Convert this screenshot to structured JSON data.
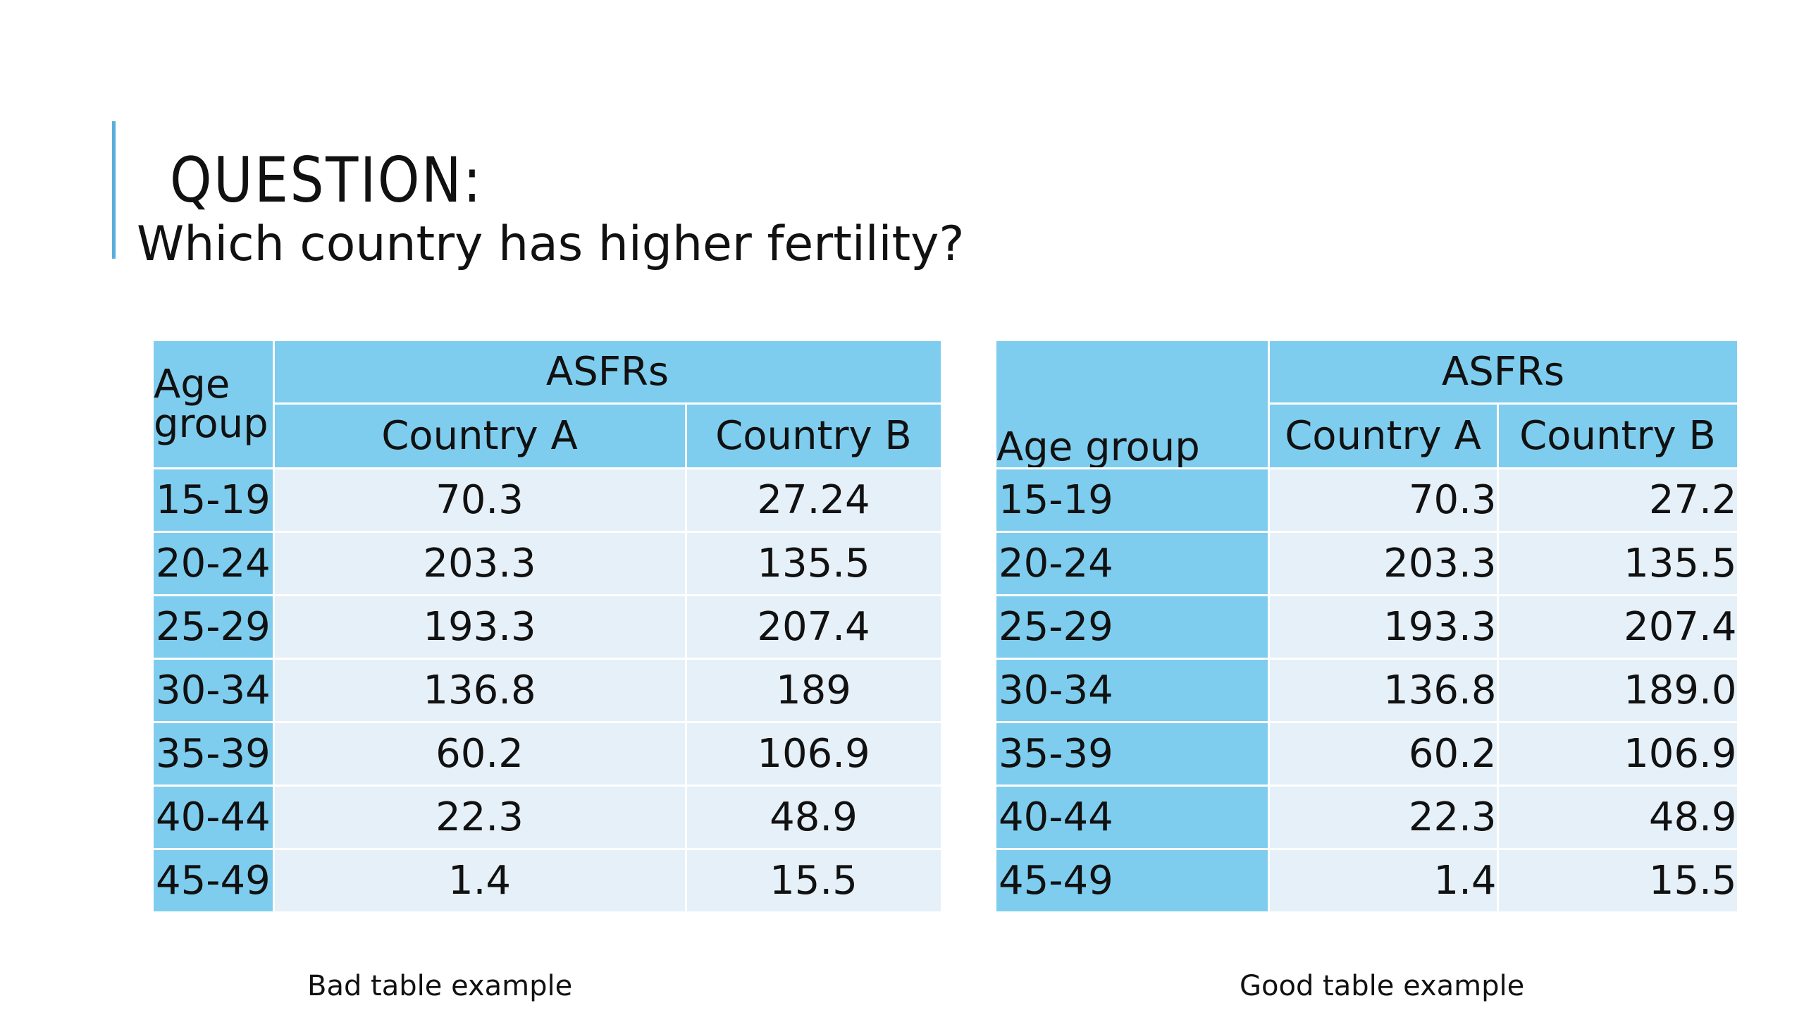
{
  "slide": {
    "title": "QUESTION:",
    "subtitle": "Which country has higher fertility?",
    "accent_color": "#5aaedc"
  },
  "tables": {
    "header_color": "#7fcdee",
    "body_color": "#e6f0f8",
    "bad": {
      "caption": "Bad table example",
      "stub_header": "Age group",
      "group_header": "ASFRs",
      "columns": [
        "Country A",
        "Country B"
      ],
      "rows": [
        {
          "age": "15-19",
          "a": "70.3",
          "b": "27.24"
        },
        {
          "age": "20-24",
          "a": "203.3",
          "b": "135.5"
        },
        {
          "age": "25-29",
          "a": "193.3",
          "b": "207.4"
        },
        {
          "age": "30-34",
          "a": "136.8",
          "b": "189"
        },
        {
          "age": "35-39",
          "a": "60.2",
          "b": "106.9"
        },
        {
          "age": "40-44",
          "a": "22.3",
          "b": "48.9"
        },
        {
          "age": "45-49",
          "a": "1.4",
          "b": "15.5"
        }
      ]
    },
    "good": {
      "caption": "Good table example",
      "stub_header": "Age group",
      "group_header": "ASFRs",
      "columns": [
        "Country A",
        "Country B"
      ],
      "rows": [
        {
          "age": "15-19",
          "a": "70.3",
          "b": "27.2"
        },
        {
          "age": "20-24",
          "a": "203.3",
          "b": "135.5"
        },
        {
          "age": "25-29",
          "a": "193.3",
          "b": "207.4"
        },
        {
          "age": "30-34",
          "a": "136.8",
          "b": "189.0"
        },
        {
          "age": "35-39",
          "a": "60.2",
          "b": "106.9"
        },
        {
          "age": "40-44",
          "a": "22.3",
          "b": "48.9"
        },
        {
          "age": "45-49",
          "a": "1.4",
          "b": "15.5"
        }
      ]
    }
  }
}
